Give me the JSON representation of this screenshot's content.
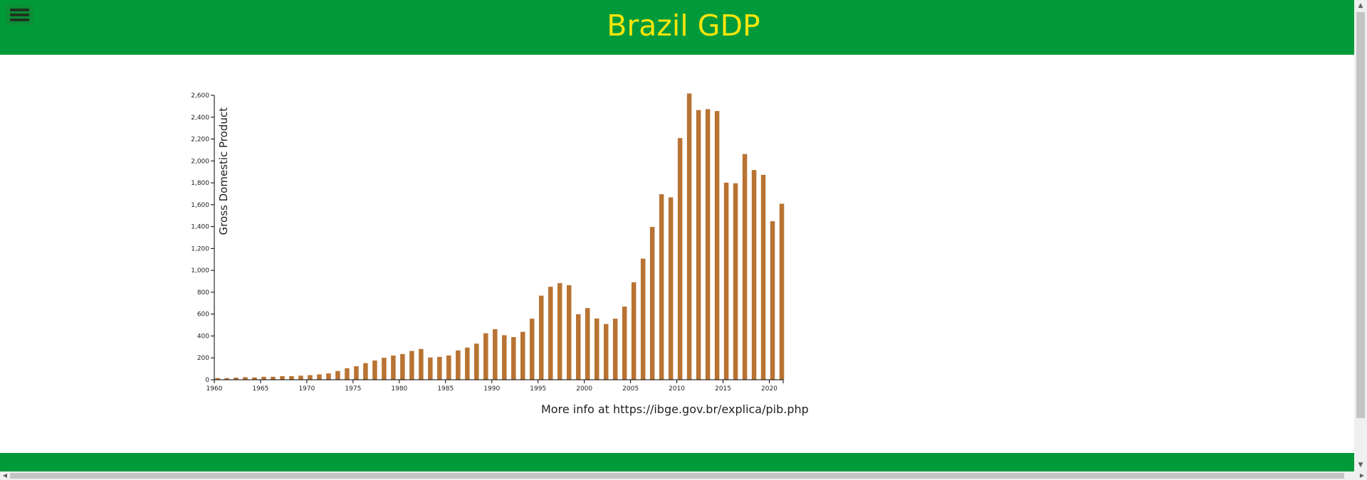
{
  "header": {
    "title": "Brazil GDP",
    "menu_icon": "hamburger-menu-icon"
  },
  "colors": {
    "brand_green": "#009a3a",
    "title_yellow": "#f5e50c",
    "bar_color": "#b87333"
  },
  "footer": {
    "more_info": "More info at https://ibge.gov.br/explica/pib.php"
  },
  "chart_data": {
    "type": "bar",
    "title": "",
    "xlabel": "",
    "ylabel": "Gross Domestic Product",
    "ylim": [
      0,
      2600
    ],
    "yticks": [
      0,
      200,
      400,
      600,
      800,
      1000,
      1200,
      1400,
      1600,
      1800,
      2000,
      2200,
      2400,
      2600
    ],
    "ytick_labels": [
      "0",
      "200",
      "400",
      "600",
      "800",
      "1,000",
      "1,200",
      "1,400",
      "1,600",
      "1,800",
      "2,000",
      "2,200",
      "2,400",
      "2,600"
    ],
    "xticks": [
      "1960",
      "1965",
      "1970",
      "1975",
      "1980",
      "1985",
      "1990",
      "1995",
      "2000",
      "2005",
      "2010",
      "2015",
      "2020"
    ],
    "categories": [
      1960,
      1961,
      1962,
      1963,
      1964,
      1965,
      1966,
      1967,
      1968,
      1969,
      1970,
      1971,
      1972,
      1973,
      1974,
      1975,
      1976,
      1977,
      1978,
      1979,
      1980,
      1981,
      1982,
      1983,
      1984,
      1985,
      1986,
      1987,
      1988,
      1989,
      1990,
      1991,
      1992,
      1993,
      1994,
      1995,
      1996,
      1997,
      1998,
      1999,
      2000,
      2001,
      2002,
      2003,
      2004,
      2005,
      2006,
      2007,
      2008,
      2009,
      2010,
      2011,
      2012,
      2013,
      2014,
      2015,
      2016,
      2017,
      2018,
      2019,
      2020,
      2021
    ],
    "values": [
      15,
      15,
      19,
      23,
      21,
      27,
      27,
      33,
      33,
      37,
      42,
      49,
      58,
      80,
      105,
      123,
      152,
      176,
      201,
      221,
      235,
      263,
      281,
      203,
      209,
      222,
      268,
      294,
      330,
      425,
      462,
      407,
      390,
      438,
      558,
      769,
      850,
      883,
      864,
      599,
      655,
      560,
      509,
      558,
      669,
      891,
      1107,
      1397,
      1696,
      1667,
      2209,
      2616,
      2465,
      2473,
      2456,
      1802,
      1796,
      2063,
      1917,
      1873,
      1449,
      1609
    ]
  }
}
